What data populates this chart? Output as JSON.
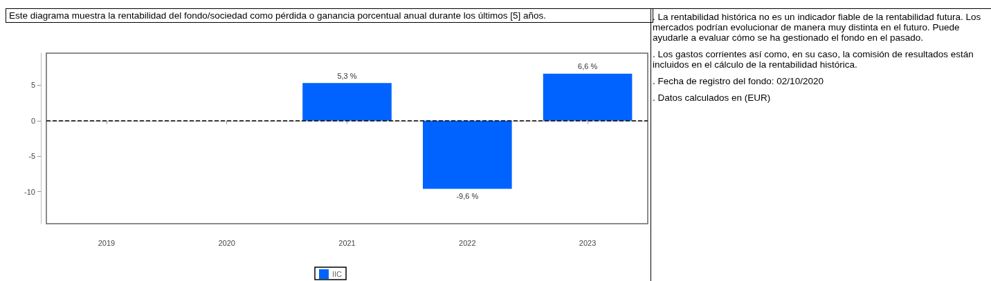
{
  "chart_data": {
    "type": "bar",
    "title": "Este diagrama muestra la rentabilidad del fondo/sociedad como pérdida o ganancia porcentual anual durante los últimos [5] años.",
    "categories": [
      "2019",
      "2020",
      "2021",
      "2022",
      "2023"
    ],
    "series": [
      {
        "name": "IIC",
        "color": "#0063ff",
        "values": [
          null,
          null,
          5.3,
          -9.6,
          6.6
        ],
        "value_labels": [
          null,
          null,
          "5,3 %",
          "-9,6 %",
          "6,6 %"
        ]
      }
    ],
    "ylim": [
      -14.5,
      9.5
    ],
    "yticks": [
      -10,
      -5,
      0,
      5
    ],
    "grid": false,
    "legend": "bottom",
    "ref_lines": [
      {
        "axis": "y",
        "value": 0,
        "color": "#000000",
        "line_style": "dashed"
      }
    ],
    "annotations": [
      ". La rentabilidad histórica no es un indicador fiable de la rentabilidad futura. Los mercados podrían evolucionar de manera muy distinta en el futuro. Puede ayudarle a evaluar cómo se ha gestionado el fondo en el pasado.",
      ". Los gastos corrientes así como, en su caso, la comisión de resultados están incluidos en el cálculo de la rentabilidad histórica.",
      ". Fecha de registro del fondo: 02/10/2020",
      ". Datos calculados en (EUR)"
    ]
  }
}
